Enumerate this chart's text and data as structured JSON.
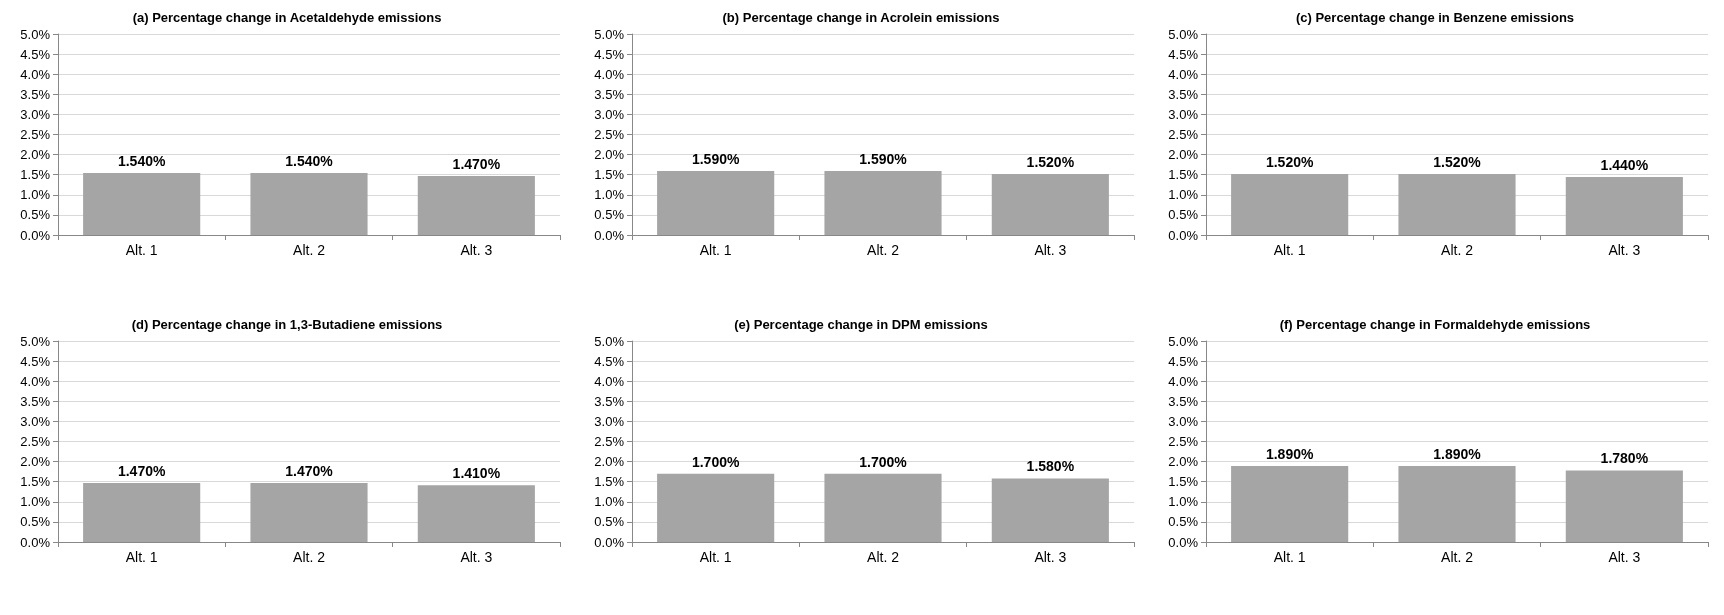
{
  "chart_data": [
    {
      "type": "bar",
      "title": "(a) Percentage change in Acetaldehyde emissions",
      "categories": [
        "Alt. 1",
        "Alt. 2",
        "Alt. 3"
      ],
      "values": [
        1.54,
        1.54,
        1.47
      ],
      "value_labels": [
        "1.540%",
        "1.540%",
        "1.470%"
      ],
      "color": "#a5a5a5",
      "ylim": [
        0,
        5
      ],
      "yticks": [
        {
          "value": 0,
          "label": "0.0%"
        },
        {
          "value": 0.5,
          "label": "0.5%"
        },
        {
          "value": 1,
          "label": "1.0%"
        },
        {
          "value": 1.5,
          "label": "1.5%"
        },
        {
          "value": 2,
          "label": "2.0%"
        },
        {
          "value": 2.5,
          "label": "2.5%"
        },
        {
          "value": 3,
          "label": "3.0%"
        },
        {
          "value": 3.5,
          "label": "3.5%"
        },
        {
          "value": 4,
          "label": "4.0%"
        },
        {
          "value": 4.5,
          "label": "4.5%"
        },
        {
          "value": 5,
          "label": "5.0%"
        }
      ],
      "grid": "y"
    },
    {
      "type": "bar",
      "title": "(b) Percentage change in Acrolein emissions",
      "categories": [
        "Alt. 1",
        "Alt. 2",
        "Alt. 3"
      ],
      "values": [
        1.59,
        1.59,
        1.52
      ],
      "value_labels": [
        "1.590%",
        "1.590%",
        "1.520%"
      ],
      "color": "#a5a5a5",
      "ylim": [
        0,
        5
      ],
      "yticks": [
        {
          "value": 0,
          "label": "0.0%"
        },
        {
          "value": 0.5,
          "label": "0.5%"
        },
        {
          "value": 1,
          "label": "1.0%"
        },
        {
          "value": 1.5,
          "label": "1.5%"
        },
        {
          "value": 2,
          "label": "2.0%"
        },
        {
          "value": 2.5,
          "label": "2.5%"
        },
        {
          "value": 3,
          "label": "3.0%"
        },
        {
          "value": 3.5,
          "label": "3.5%"
        },
        {
          "value": 4,
          "label": "4.0%"
        },
        {
          "value": 4.5,
          "label": "4.5%"
        },
        {
          "value": 5,
          "label": "5.0%"
        }
      ],
      "grid": "y"
    },
    {
      "type": "bar",
      "title": "(c) Percentage change in Benzene emissions",
      "categories": [
        "Alt. 1",
        "Alt. 2",
        "Alt. 3"
      ],
      "values": [
        1.52,
        1.52,
        1.44
      ],
      "value_labels": [
        "1.520%",
        "1.520%",
        "1.440%"
      ],
      "color": "#a5a5a5",
      "ylim": [
        0,
        5
      ],
      "yticks": [
        {
          "value": 0,
          "label": "0.0%"
        },
        {
          "value": 0.5,
          "label": "0.5%"
        },
        {
          "value": 1,
          "label": "1.0%"
        },
        {
          "value": 1.5,
          "label": "1.5%"
        },
        {
          "value": 2,
          "label": "2.0%"
        },
        {
          "value": 2.5,
          "label": "2.5%"
        },
        {
          "value": 3,
          "label": "3.0%"
        },
        {
          "value": 3.5,
          "label": "3.5%"
        },
        {
          "value": 4,
          "label": "4.0%"
        },
        {
          "value": 4.5,
          "label": "4.5%"
        },
        {
          "value": 5,
          "label": "5.0%"
        }
      ],
      "grid": "y"
    },
    {
      "type": "bar",
      "title": "(d) Percentage change in 1,3-Butadiene emissions",
      "categories": [
        "Alt. 1",
        "Alt. 2",
        "Alt. 3"
      ],
      "values": [
        1.47,
        1.47,
        1.41
      ],
      "value_labels": [
        "1.470%",
        "1.470%",
        "1.410%"
      ],
      "color": "#a5a5a5",
      "ylim": [
        0,
        5
      ],
      "yticks": [
        {
          "value": 0,
          "label": "0.0%"
        },
        {
          "value": 0.5,
          "label": "0.5%"
        },
        {
          "value": 1,
          "label": "1.0%"
        },
        {
          "value": 1.5,
          "label": "1.5%"
        },
        {
          "value": 2,
          "label": "2.0%"
        },
        {
          "value": 2.5,
          "label": "2.5%"
        },
        {
          "value": 3,
          "label": "3.0%"
        },
        {
          "value": 3.5,
          "label": "3.5%"
        },
        {
          "value": 4,
          "label": "4.0%"
        },
        {
          "value": 4.5,
          "label": "4.5%"
        },
        {
          "value": 5,
          "label": "5.0%"
        }
      ],
      "grid": "y"
    },
    {
      "type": "bar",
      "title": "(e) Percentage change in DPM emissions",
      "categories": [
        "Alt. 1",
        "Alt. 2",
        "Alt. 3"
      ],
      "values": [
        1.7,
        1.7,
        1.58
      ],
      "value_labels": [
        "1.700%",
        "1.700%",
        "1.580%"
      ],
      "color": "#a5a5a5",
      "ylim": [
        0,
        5
      ],
      "yticks": [
        {
          "value": 0,
          "label": "0.0%"
        },
        {
          "value": 0.5,
          "label": "0.5%"
        },
        {
          "value": 1,
          "label": "1.0%"
        },
        {
          "value": 1.5,
          "label": "1.5%"
        },
        {
          "value": 2,
          "label": "2.0%"
        },
        {
          "value": 2.5,
          "label": "2.5%"
        },
        {
          "value": 3,
          "label": "3.0%"
        },
        {
          "value": 3.5,
          "label": "3.5%"
        },
        {
          "value": 4,
          "label": "4.0%"
        },
        {
          "value": 4.5,
          "label": "4.5%"
        },
        {
          "value": 5,
          "label": "5.0%"
        }
      ],
      "grid": "y"
    },
    {
      "type": "bar",
      "title": "(f) Percentage change in Formaldehyde emissions",
      "categories": [
        "Alt. 1",
        "Alt. 2",
        "Alt. 3"
      ],
      "values": [
        1.89,
        1.89,
        1.78
      ],
      "value_labels": [
        "1.890%",
        "1.890%",
        "1.780%"
      ],
      "color": "#a5a5a5",
      "ylim": [
        0,
        5
      ],
      "yticks": [
        {
          "value": 0,
          "label": "0.0%"
        },
        {
          "value": 0.5,
          "label": "0.5%"
        },
        {
          "value": 1,
          "label": "1.0%"
        },
        {
          "value": 1.5,
          "label": "1.5%"
        },
        {
          "value": 2,
          "label": "2.0%"
        },
        {
          "value": 2.5,
          "label": "2.5%"
        },
        {
          "value": 3,
          "label": "3.0%"
        },
        {
          "value": 3.5,
          "label": "3.5%"
        },
        {
          "value": 4,
          "label": "4.0%"
        },
        {
          "value": 4.5,
          "label": "4.5%"
        },
        {
          "value": 5,
          "label": "5.0%"
        }
      ],
      "grid": "y"
    }
  ]
}
